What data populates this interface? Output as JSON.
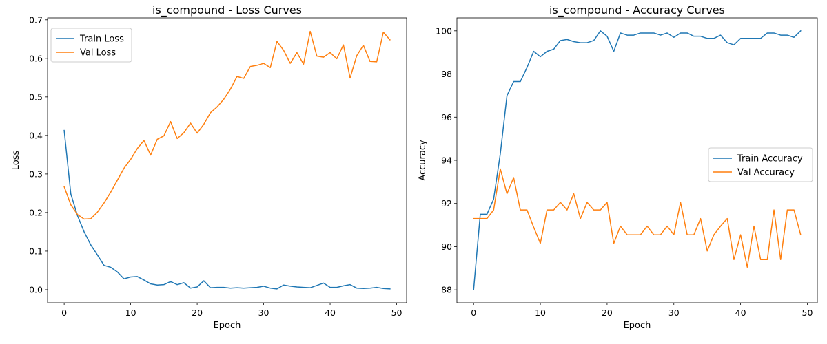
{
  "chart_data": [
    {
      "type": "line",
      "title": "is_compound - Loss Curves",
      "xlabel": "Epoch",
      "ylabel": "Loss",
      "xlim": [
        -2.5,
        51.5
      ],
      "ylim": [
        -0.034,
        0.705
      ],
      "xticks": [
        0,
        10,
        20,
        30,
        40,
        50
      ],
      "yticks": [
        0.0,
        0.1,
        0.2,
        0.3,
        0.4,
        0.5,
        0.6,
        0.7
      ],
      "ytick_labels": [
        "0.0",
        "0.1",
        "0.2",
        "0.3",
        "0.4",
        "0.5",
        "0.6",
        "0.7"
      ],
      "legend_position": "upper left",
      "grid": false,
      "x": [
        0,
        1,
        2,
        3,
        4,
        5,
        6,
        7,
        8,
        9,
        10,
        11,
        12,
        13,
        14,
        15,
        16,
        17,
        18,
        19,
        20,
        21,
        22,
        23,
        24,
        25,
        26,
        27,
        28,
        29,
        30,
        31,
        32,
        33,
        34,
        35,
        36,
        37,
        38,
        39,
        40,
        41,
        42,
        43,
        44,
        45,
        46,
        47,
        48,
        49
      ],
      "series": [
        {
          "name": "Train Loss",
          "color": "#1f77b4",
          "values": [
            0.413,
            0.248,
            0.192,
            0.15,
            0.116,
            0.09,
            0.063,
            0.058,
            0.046,
            0.028,
            0.033,
            0.034,
            0.025,
            0.015,
            0.012,
            0.013,
            0.021,
            0.013,
            0.018,
            0.004,
            0.007,
            0.023,
            0.005,
            0.006,
            0.006,
            0.004,
            0.005,
            0.004,
            0.005,
            0.006,
            0.009,
            0.004,
            0.002,
            0.012,
            0.009,
            0.007,
            0.006,
            0.005,
            0.011,
            0.017,
            0.006,
            0.006,
            0.01,
            0.013,
            0.004,
            0.003,
            0.004,
            0.006,
            0.003,
            0.002
          ]
        },
        {
          "name": "Val Loss",
          "color": "#ff7f0e",
          "values": [
            0.267,
            0.22,
            0.195,
            0.183,
            0.184,
            0.201,
            0.225,
            0.253,
            0.284,
            0.315,
            0.338,
            0.366,
            0.387,
            0.349,
            0.39,
            0.399,
            0.436,
            0.392,
            0.407,
            0.432,
            0.406,
            0.429,
            0.459,
            0.474,
            0.494,
            0.52,
            0.553,
            0.548,
            0.579,
            0.582,
            0.587,
            0.576,
            0.644,
            0.621,
            0.587,
            0.615,
            0.585,
            0.67,
            0.606,
            0.603,
            0.615,
            0.599,
            0.635,
            0.549,
            0.607,
            0.634,
            0.592,
            0.591,
            0.668,
            0.648
          ]
        }
      ]
    },
    {
      "type": "line",
      "title": "is_compound - Accuracy Curves",
      "xlabel": "Epoch",
      "ylabel": "Accuracy",
      "xlim": [
        -2.5,
        51.5
      ],
      "ylim": [
        87.4,
        100.6
      ],
      "xticks": [
        0,
        10,
        20,
        30,
        40,
        50
      ],
      "yticks": [
        88,
        90,
        92,
        94,
        96,
        98,
        100
      ],
      "ytick_labels": [
        "88",
        "90",
        "92",
        "94",
        "96",
        "98",
        "100"
      ],
      "legend_position": "center right",
      "grid": false,
      "x": [
        0,
        1,
        2,
        3,
        4,
        5,
        6,
        7,
        8,
        9,
        10,
        11,
        12,
        13,
        14,
        15,
        16,
        17,
        18,
        19,
        20,
        21,
        22,
        23,
        24,
        25,
        26,
        27,
        28,
        29,
        30,
        31,
        32,
        33,
        34,
        35,
        36,
        37,
        38,
        39,
        40,
        41,
        42,
        43,
        44,
        45,
        46,
        47,
        48,
        49
      ],
      "series": [
        {
          "name": "Train Accuracy",
          "color": "#1f77b4",
          "values": [
            88.0,
            91.5,
            91.5,
            92.2,
            94.3,
            97.0,
            97.65,
            97.65,
            98.3,
            99.05,
            98.8,
            99.05,
            99.15,
            99.55,
            99.6,
            99.5,
            99.45,
            99.45,
            99.55,
            100.0,
            99.75,
            99.05,
            99.9,
            99.8,
            99.8,
            99.9,
            99.9,
            99.9,
            99.8,
            99.9,
            99.7,
            99.9,
            99.9,
            99.75,
            99.75,
            99.65,
            99.65,
            99.8,
            99.45,
            99.35,
            99.65,
            99.65,
            99.65,
            99.65,
            99.9,
            99.9,
            99.8,
            99.8,
            99.7,
            100.0
          ]
        },
        {
          "name": "Val Accuracy",
          "color": "#ff7f0e",
          "values": [
            91.3,
            91.3,
            91.3,
            91.7,
            93.6,
            92.45,
            93.2,
            91.7,
            91.7,
            90.9,
            90.15,
            91.7,
            91.7,
            92.05,
            91.7,
            92.45,
            91.3,
            92.05,
            91.7,
            91.7,
            92.05,
            90.15,
            90.95,
            90.55,
            90.55,
            90.55,
            90.95,
            90.55,
            90.55,
            90.95,
            90.55,
            92.05,
            90.55,
            90.55,
            91.3,
            89.8,
            90.55,
            90.95,
            91.3,
            89.4,
            90.55,
            89.05,
            90.95,
            89.4,
            89.4,
            91.7,
            89.4,
            91.7,
            91.7,
            90.55
          ]
        }
      ]
    }
  ]
}
